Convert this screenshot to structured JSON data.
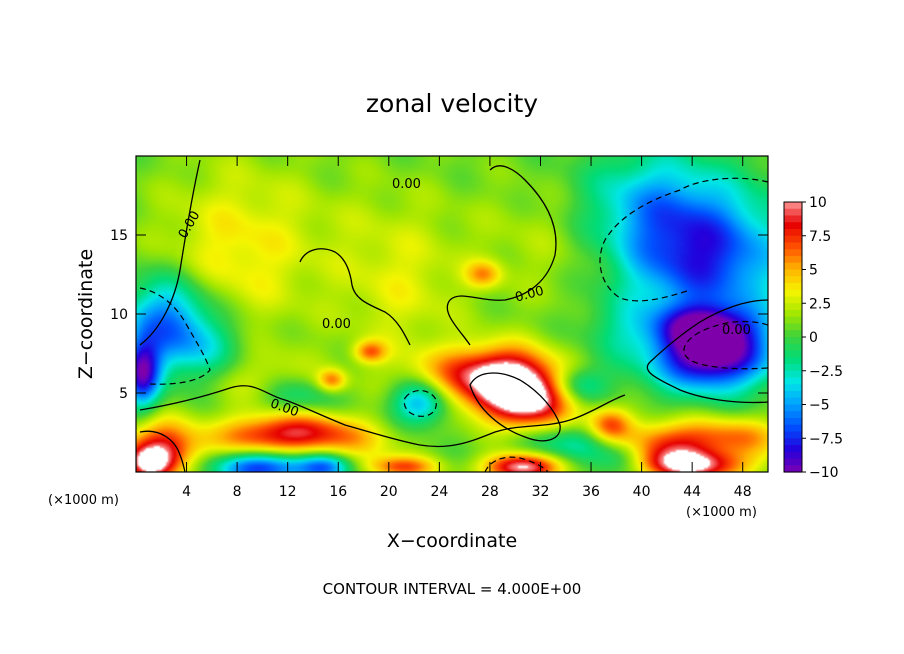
{
  "chart_data": {
    "type": "heatmap",
    "title": "zonal velocity",
    "xlabel": "X−coordinate",
    "ylabel": "Z−coordinate",
    "x_unit": "(×1000 m)",
    "z_unit": "(×1000 m)",
    "xlim": [
      0,
      50
    ],
    "ylim": [
      0,
      20
    ],
    "x_ticks": [
      4,
      8,
      12,
      16,
      20,
      24,
      28,
      32,
      36,
      40,
      44,
      48
    ],
    "y_ticks": [
      5,
      10,
      15
    ],
    "colorbar": {
      "vmin": -10,
      "vmax": 10,
      "ticks": [
        "10",
        "7.5",
        "5",
        "2.5",
        "0",
        "−2.5",
        "−5",
        "−7.5",
        "−10"
      ],
      "colors": [
        "#7b00b4",
        "#2300dc",
        "#0050ff",
        "#00a0ff",
        "#00e6e6",
        "#00dc78",
        "#3cd23c",
        "#a0e600",
        "#f5f500",
        "#ffb400",
        "#ff5000",
        "#e60000",
        "#ff9696"
      ]
    },
    "contour_labels": [
      "0.00",
      "0.00",
      "0.00",
      "0.00",
      "0.00",
      "0.00"
    ],
    "grid": false,
    "legend": "colorbar-right",
    "features": [
      {
        "x": 29.5,
        "z": 5.6,
        "sx": 2.8,
        "sz": 1.5,
        "u": 10
      },
      {
        "x": 31.5,
        "z": 4.3,
        "sx": 2.2,
        "sz": 1.2,
        "u": 6
      },
      {
        "x": 26.0,
        "z": 6.2,
        "sx": 3.5,
        "sz": 1.2,
        "u": 4
      },
      {
        "x": 2.0,
        "z": 1.4,
        "sx": 2.2,
        "sz": 1.3,
        "u": 8
      },
      {
        "x": 1.0,
        "z": 0.5,
        "sx": 1.2,
        "sz": 0.7,
        "u": 6
      },
      {
        "x": 13.0,
        "z": 2.5,
        "sx": 2.8,
        "sz": 0.9,
        "u": 6
      },
      {
        "x": 9.0,
        "z": 2.2,
        "sx": 2.5,
        "sz": 0.9,
        "u": 4
      },
      {
        "x": 17.0,
        "z": 2.0,
        "sx": 3.0,
        "sz": 1.0,
        "u": 3
      },
      {
        "x": 37.5,
        "z": 3.0,
        "sx": 1.2,
        "sz": 0.8,
        "u": 6
      },
      {
        "x": 42.0,
        "z": 1.8,
        "sx": 2.5,
        "sz": 1.0,
        "u": 6
      },
      {
        "x": 47.5,
        "z": 2.2,
        "sx": 2.8,
        "sz": 0.9,
        "u": 5
      },
      {
        "x": 44.0,
        "z": 0.4,
        "sx": 3.0,
        "sz": 0.7,
        "u": 9
      },
      {
        "x": 30.5,
        "z": 0.3,
        "sx": 2.0,
        "sz": 0.6,
        "u": 10
      },
      {
        "x": 21.0,
        "z": 0.3,
        "sx": 2.0,
        "sz": 0.5,
        "u": 6
      },
      {
        "x": 18.5,
        "z": 7.6,
        "sx": 0.9,
        "sz": 0.5,
        "u": 5
      },
      {
        "x": 15.5,
        "z": 5.8,
        "sx": 0.8,
        "sz": 0.5,
        "u": 5
      },
      {
        "x": 8.0,
        "z": 14.0,
        "sx": 4.5,
        "sz": 4.0,
        "u": 3
      },
      {
        "x": 21.0,
        "z": 11.0,
        "sx": 3.5,
        "sz": 3.0,
        "u": 2
      },
      {
        "x": 27.5,
        "z": 12.5,
        "sx": 1.0,
        "sz": 0.6,
        "u": 4
      },
      {
        "x": 10.0,
        "z": 5.8,
        "sx": 3.0,
        "sz": 1.5,
        "u": 2
      },
      {
        "x": 45.0,
        "z": 13.5,
        "sx": 4.5,
        "sz": 3.0,
        "u": -8
      },
      {
        "x": 45.5,
        "z": 7.3,
        "sx": 3.2,
        "sz": 1.5,
        "u": -11
      },
      {
        "x": 45.0,
        "z": 9.2,
        "sx": 3.0,
        "sz": 1.0,
        "u": -6
      },
      {
        "x": 40.5,
        "z": 17.0,
        "sx": 4.0,
        "sz": 2.5,
        "u": -4
      },
      {
        "x": 2.5,
        "z": 10.0,
        "sx": 2.5,
        "sz": 1.8,
        "u": -6
      },
      {
        "x": 0.5,
        "z": 6.2,
        "sx": 1.0,
        "sz": 1.5,
        "u": -9
      },
      {
        "x": 4.5,
        "z": 7.8,
        "sx": 3.0,
        "sz": 1.5,
        "u": -4
      },
      {
        "x": 22.5,
        "z": 4.4,
        "sx": 1.5,
        "sz": 1.0,
        "u": -6
      },
      {
        "x": 12.5,
        "z": 4.8,
        "sx": 2.0,
        "sz": 0.8,
        "u": -3
      },
      {
        "x": 35.0,
        "z": 5.5,
        "sx": 1.5,
        "sz": 0.8,
        "u": -4
      },
      {
        "x": 10.0,
        "z": 0.3,
        "sx": 2.8,
        "sz": 0.7,
        "u": -8
      },
      {
        "x": 15.0,
        "z": 0.3,
        "sx": 1.5,
        "sz": 0.6,
        "u": -6
      },
      {
        "x": 38.5,
        "z": 0.8,
        "sx": 1.5,
        "sz": 0.8,
        "u": -3
      },
      {
        "x": 34.0,
        "z": 1.8,
        "sx": 2.5,
        "sz": 0.8,
        "u": -3
      },
      {
        "x": 38.0,
        "z": 9.0,
        "sx": 2.0,
        "sz": 1.5,
        "u": -1.5
      },
      {
        "x": 20.0,
        "z": 15.5,
        "sx": 5.0,
        "sz": 3.0,
        "u": 1
      },
      {
        "x": 33.0,
        "z": 14.5,
        "sx": 4.0,
        "sz": 3.0,
        "u": 1.5
      }
    ]
  },
  "footer": {
    "contour_interval": "CONTOUR INTERVAL = 4.000E+00"
  }
}
